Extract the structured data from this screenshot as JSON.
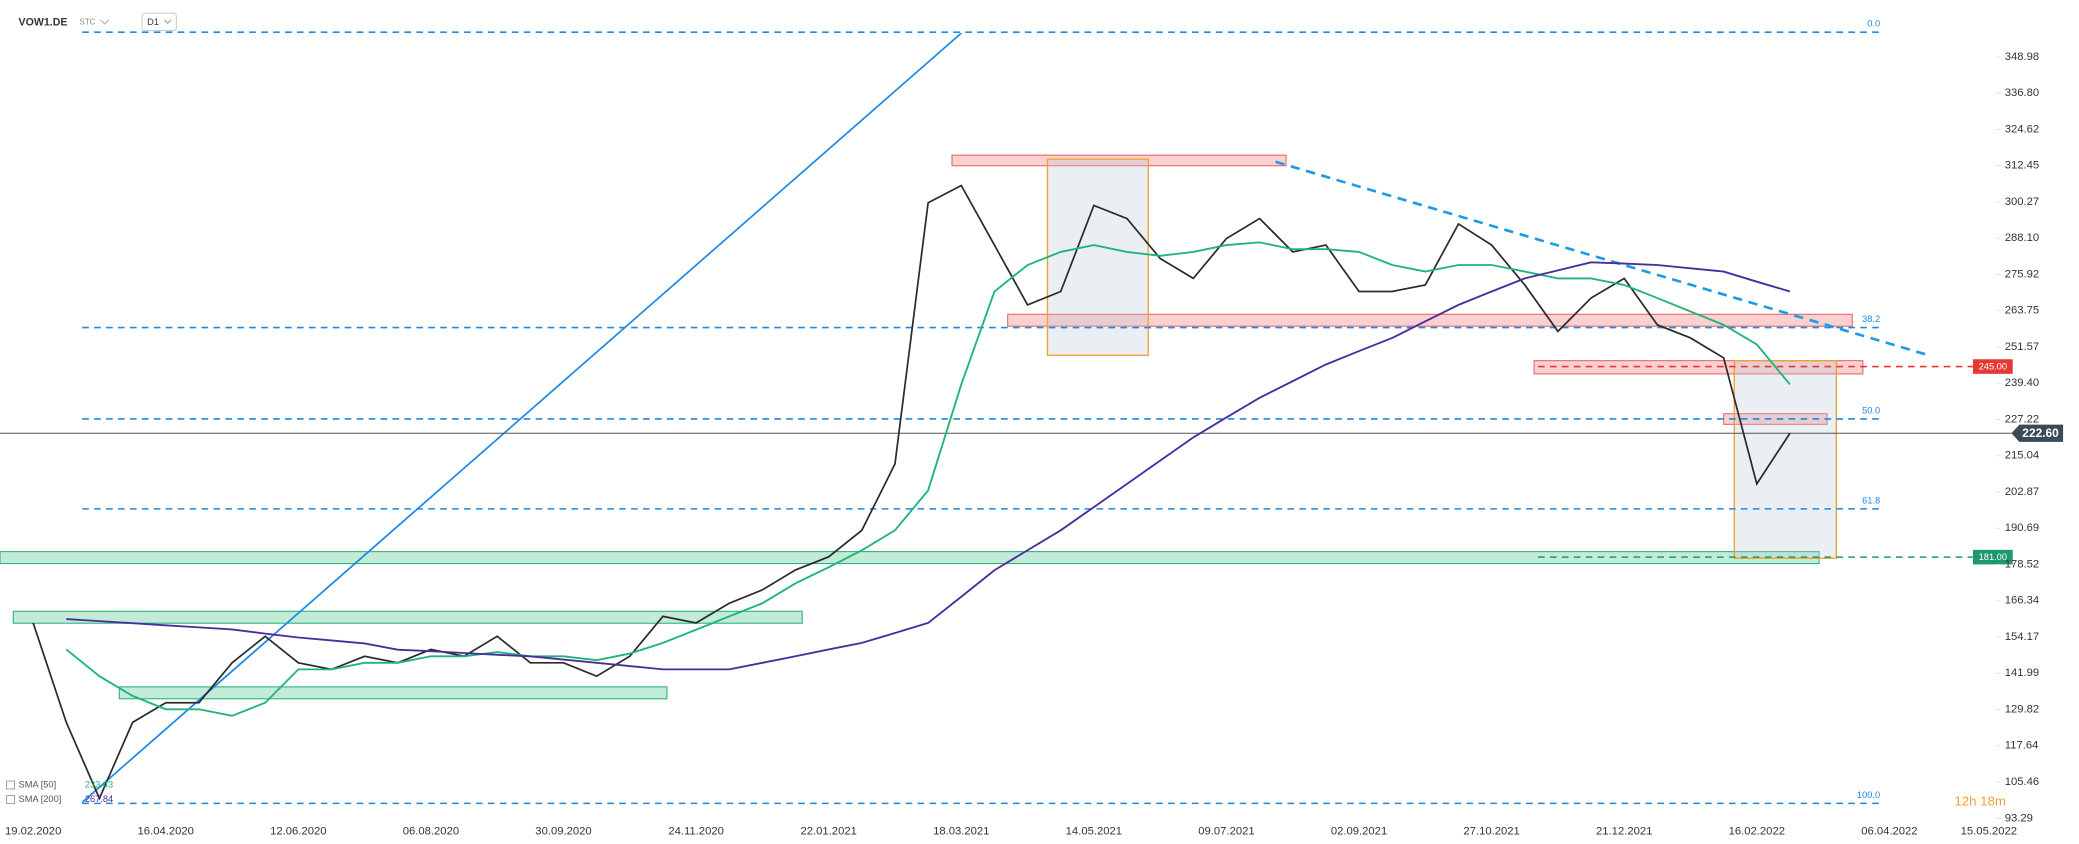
{
  "chart_data": {
    "type": "line",
    "symbol": "VOW1.DE",
    "source": "STC",
    "interval": "D1",
    "timer": "12h 18m",
    "categories": [
      "19.02.2020",
      null,
      null,
      null,
      "16.04.2020",
      null,
      null,
      null,
      "12.06.2020",
      null,
      null,
      null,
      "06.08.2020",
      null,
      null,
      null,
      "30.09.2020",
      null,
      null,
      null,
      "24.11.2020",
      null,
      null,
      null,
      "22.01.2021",
      null,
      null,
      null,
      "18.03.2021",
      null,
      null,
      null,
      "14.05.2021",
      null,
      null,
      null,
      "09.07.2021",
      null,
      null,
      null,
      "02.09.2021",
      null,
      null,
      null,
      "27.10.2021",
      null,
      null,
      null,
      "21.12.2021",
      null,
      null,
      null,
      "16.02.2022",
      null,
      null,
      null,
      "06.04.2022",
      null,
      null,
      "15.05.2022"
    ],
    "series": [
      {
        "color": "#2b2b2b",
        "values": [
          158.9,
          125.5,
          100,
          125.5,
          132.1,
          132.1,
          145.5,
          154.4,
          145.5,
          143.3,
          147.7,
          145.5,
          150,
          147.7,
          154.4,
          145.5,
          145.5,
          141,
          147.7,
          161.1,
          158.9,
          165.5,
          170,
          176.7,
          181.1,
          190,
          212.3,
          300,
          305.8,
          285.8,
          265.7,
          270.2,
          299.1,
          294.7,
          281.3,
          274.6,
          288,
          294.7,
          283.5,
          285.8,
          270.2,
          270.2,
          272.4,
          292.9,
          285.8,
          272.4,
          256.8,
          268,
          274.6,
          259,
          254.6,
          247.9,
          205.6,
          222.6,
          null,
          null,
          null,
          null,
          null,
          null
        ]
      },
      {
        "name": "SMA [50]",
        "legend_value": "233.43",
        "color": "#1fb47c",
        "values": [
          null,
          150,
          141,
          134.4,
          129.9,
          129.9,
          127.7,
          132.1,
          143.3,
          143.3,
          145.5,
          145.5,
          147.7,
          147.7,
          149.1,
          147.7,
          147.7,
          146.4,
          148.6,
          152.2,
          156.6,
          161.1,
          165.5,
          172.2,
          177.6,
          183.3,
          190,
          203.4,
          239,
          270.2,
          279.1,
          283.5,
          285.8,
          283.5,
          282.2,
          283.5,
          285.8,
          286.7,
          284.4,
          284.4,
          283.5,
          279.1,
          276.9,
          279.1,
          279.1,
          276.9,
          274.6,
          274.6,
          272.4,
          268,
          263.5,
          259,
          252.4,
          239,
          null,
          null,
          null,
          null,
          null,
          null
        ]
      },
      {
        "name": "SMA [200]",
        "legend_value": "267.84",
        "color": "#4b2c9f",
        "values": [
          null,
          160.2,
          159.5,
          158.8,
          158.1,
          157.4,
          156.7,
          155.3,
          154,
          153,
          152,
          149.9,
          149.4,
          148.8,
          148.2,
          147.7,
          146.6,
          145.5,
          144.4,
          143.3,
          143.3,
          143.3,
          145.5,
          147.7,
          150,
          152.2,
          155.5,
          158.9,
          167.7,
          176.6,
          183.3,
          190,
          197.8,
          205.6,
          213.4,
          221.2,
          227.9,
          234.5,
          240.1,
          245.7,
          250.2,
          254.6,
          260.2,
          265.7,
          270.2,
          274.6,
          277.3,
          280,
          279.6,
          279.1,
          278,
          276.9,
          273.5,
          270.2,
          null,
          null,
          null,
          null,
          null,
          null
        ]
      }
    ],
    "ylim": [
      92.0,
      368.1
    ],
    "yticks": [
      348.98,
      {
        "value": 336.8,
        "label": "336.80"
      },
      324.62,
      312.45,
      300.27,
      {
        "value": 288.1,
        "label": "288.10"
      },
      275.92,
      263.75,
      251.57,
      {
        "value": 239.4,
        "label": "239.40"
      },
      227.22,
      215.04,
      202.87,
      190.69,
      178.52,
      166.34,
      154.17,
      141.99,
      129.82,
      117.64,
      105.46,
      93.29
    ],
    "grid": false,
    "fib_levels": [
      {
        "value": 357.3,
        "label": "0.0"
      },
      {
        "value": 258.1,
        "label": "38.2"
      },
      {
        "value": 227.4,
        "label": "50.0"
      },
      {
        "value": 197.2,
        "label": "61.8"
      },
      {
        "value": 98.3,
        "label": "100.0"
      }
    ],
    "price_levels": [
      {
        "value": 245,
        "label": "245.00",
        "color": "#e53935"
      },
      {
        "value": 181,
        "label": "181.00",
        "color": "#1c9a6c"
      }
    ],
    "last_price": {
      "value": 222.6,
      "label": "222.60"
    }
  }
}
